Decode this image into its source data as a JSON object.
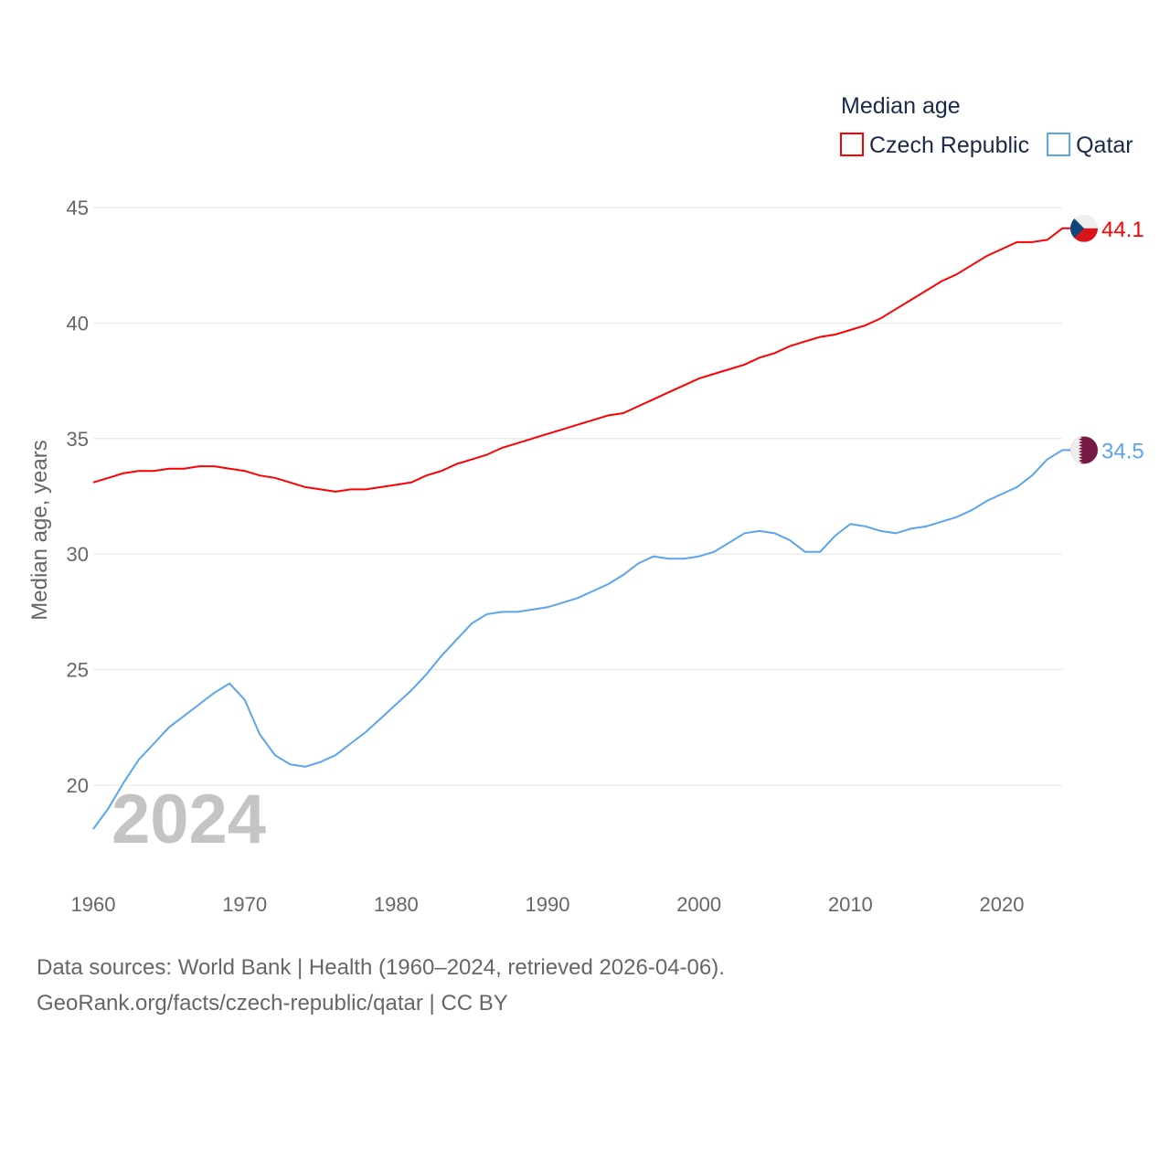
{
  "chart_data": {
    "type": "line",
    "title": "Median age",
    "xlabel": "",
    "ylabel": "Median age, years",
    "year_label": "2024",
    "xlim": [
      1960,
      2024
    ],
    "ylim": [
      17.9,
      45.5
    ],
    "xticks": [
      1960,
      1970,
      1980,
      1990,
      2000,
      2010,
      2020
    ],
    "yticks": [
      20,
      25,
      30,
      35,
      40,
      45
    ],
    "grid": true,
    "legend_placement": "top-right",
    "x": [
      1960,
      1961,
      1962,
      1963,
      1964,
      1965,
      1966,
      1967,
      1968,
      1969,
      1970,
      1971,
      1972,
      1973,
      1974,
      1975,
      1976,
      1977,
      1978,
      1979,
      1980,
      1981,
      1982,
      1983,
      1984,
      1985,
      1986,
      1987,
      1988,
      1989,
      1990,
      1991,
      1992,
      1993,
      1994,
      1995,
      1996,
      1997,
      1998,
      1999,
      2000,
      2001,
      2002,
      2003,
      2004,
      2005,
      2006,
      2007,
      2008,
      2009,
      2010,
      2011,
      2012,
      2013,
      2014,
      2015,
      2016,
      2017,
      2018,
      2019,
      2020,
      2021,
      2022,
      2023,
      2024
    ],
    "series": [
      {
        "name": "Czech Republic",
        "color": "#ff0000",
        "end_label": "44.1",
        "flag": "czech-flag",
        "values": [
          33.1,
          33.3,
          33.5,
          33.6,
          33.6,
          33.7,
          33.7,
          33.8,
          33.8,
          33.7,
          33.6,
          33.4,
          33.3,
          33.1,
          32.9,
          32.8,
          32.7,
          32.8,
          32.8,
          32.9,
          33.0,
          33.1,
          33.4,
          33.6,
          33.9,
          34.1,
          34.3,
          34.6,
          34.8,
          35.0,
          35.2,
          35.4,
          35.6,
          35.8,
          36.0,
          36.1,
          36.4,
          36.7,
          37.0,
          37.3,
          37.6,
          37.8,
          38.0,
          38.2,
          38.5,
          38.7,
          39.0,
          39.2,
          39.4,
          39.5,
          39.7,
          39.9,
          40.2,
          40.6,
          41.0,
          41.4,
          41.8,
          42.1,
          42.5,
          42.9,
          43.2,
          43.5,
          43.5,
          43.6,
          44.1
        ]
      },
      {
        "name": "Qatar",
        "color": "#5ba4ef",
        "end_label": "34.5",
        "flag": "qatar-flag",
        "values": [
          18.1,
          19.0,
          20.1,
          21.1,
          21.8,
          22.5,
          23.0,
          23.5,
          24.0,
          24.4,
          23.7,
          22.2,
          21.3,
          20.9,
          20.8,
          21.0,
          21.3,
          21.8,
          22.3,
          22.9,
          23.5,
          24.1,
          24.8,
          25.6,
          26.3,
          27.0,
          27.4,
          27.5,
          27.5,
          27.6,
          27.7,
          27.9,
          28.1,
          28.4,
          28.7,
          29.1,
          29.6,
          29.9,
          29.8,
          29.8,
          29.9,
          30.1,
          30.5,
          30.9,
          31.0,
          30.9,
          30.6,
          30.1,
          30.1,
          30.8,
          31.3,
          31.2,
          31.0,
          30.9,
          31.1,
          31.2,
          31.4,
          31.6,
          31.9,
          32.3,
          32.6,
          32.9,
          33.4,
          34.1,
          34.5
        ]
      }
    ]
  },
  "footer": {
    "line1": "Data sources: World Bank | Health (1960–2024, retrieved 2026-04-06).",
    "line2": "GeoRank.org/facts/czech-republic/qatar | CC BY"
  }
}
